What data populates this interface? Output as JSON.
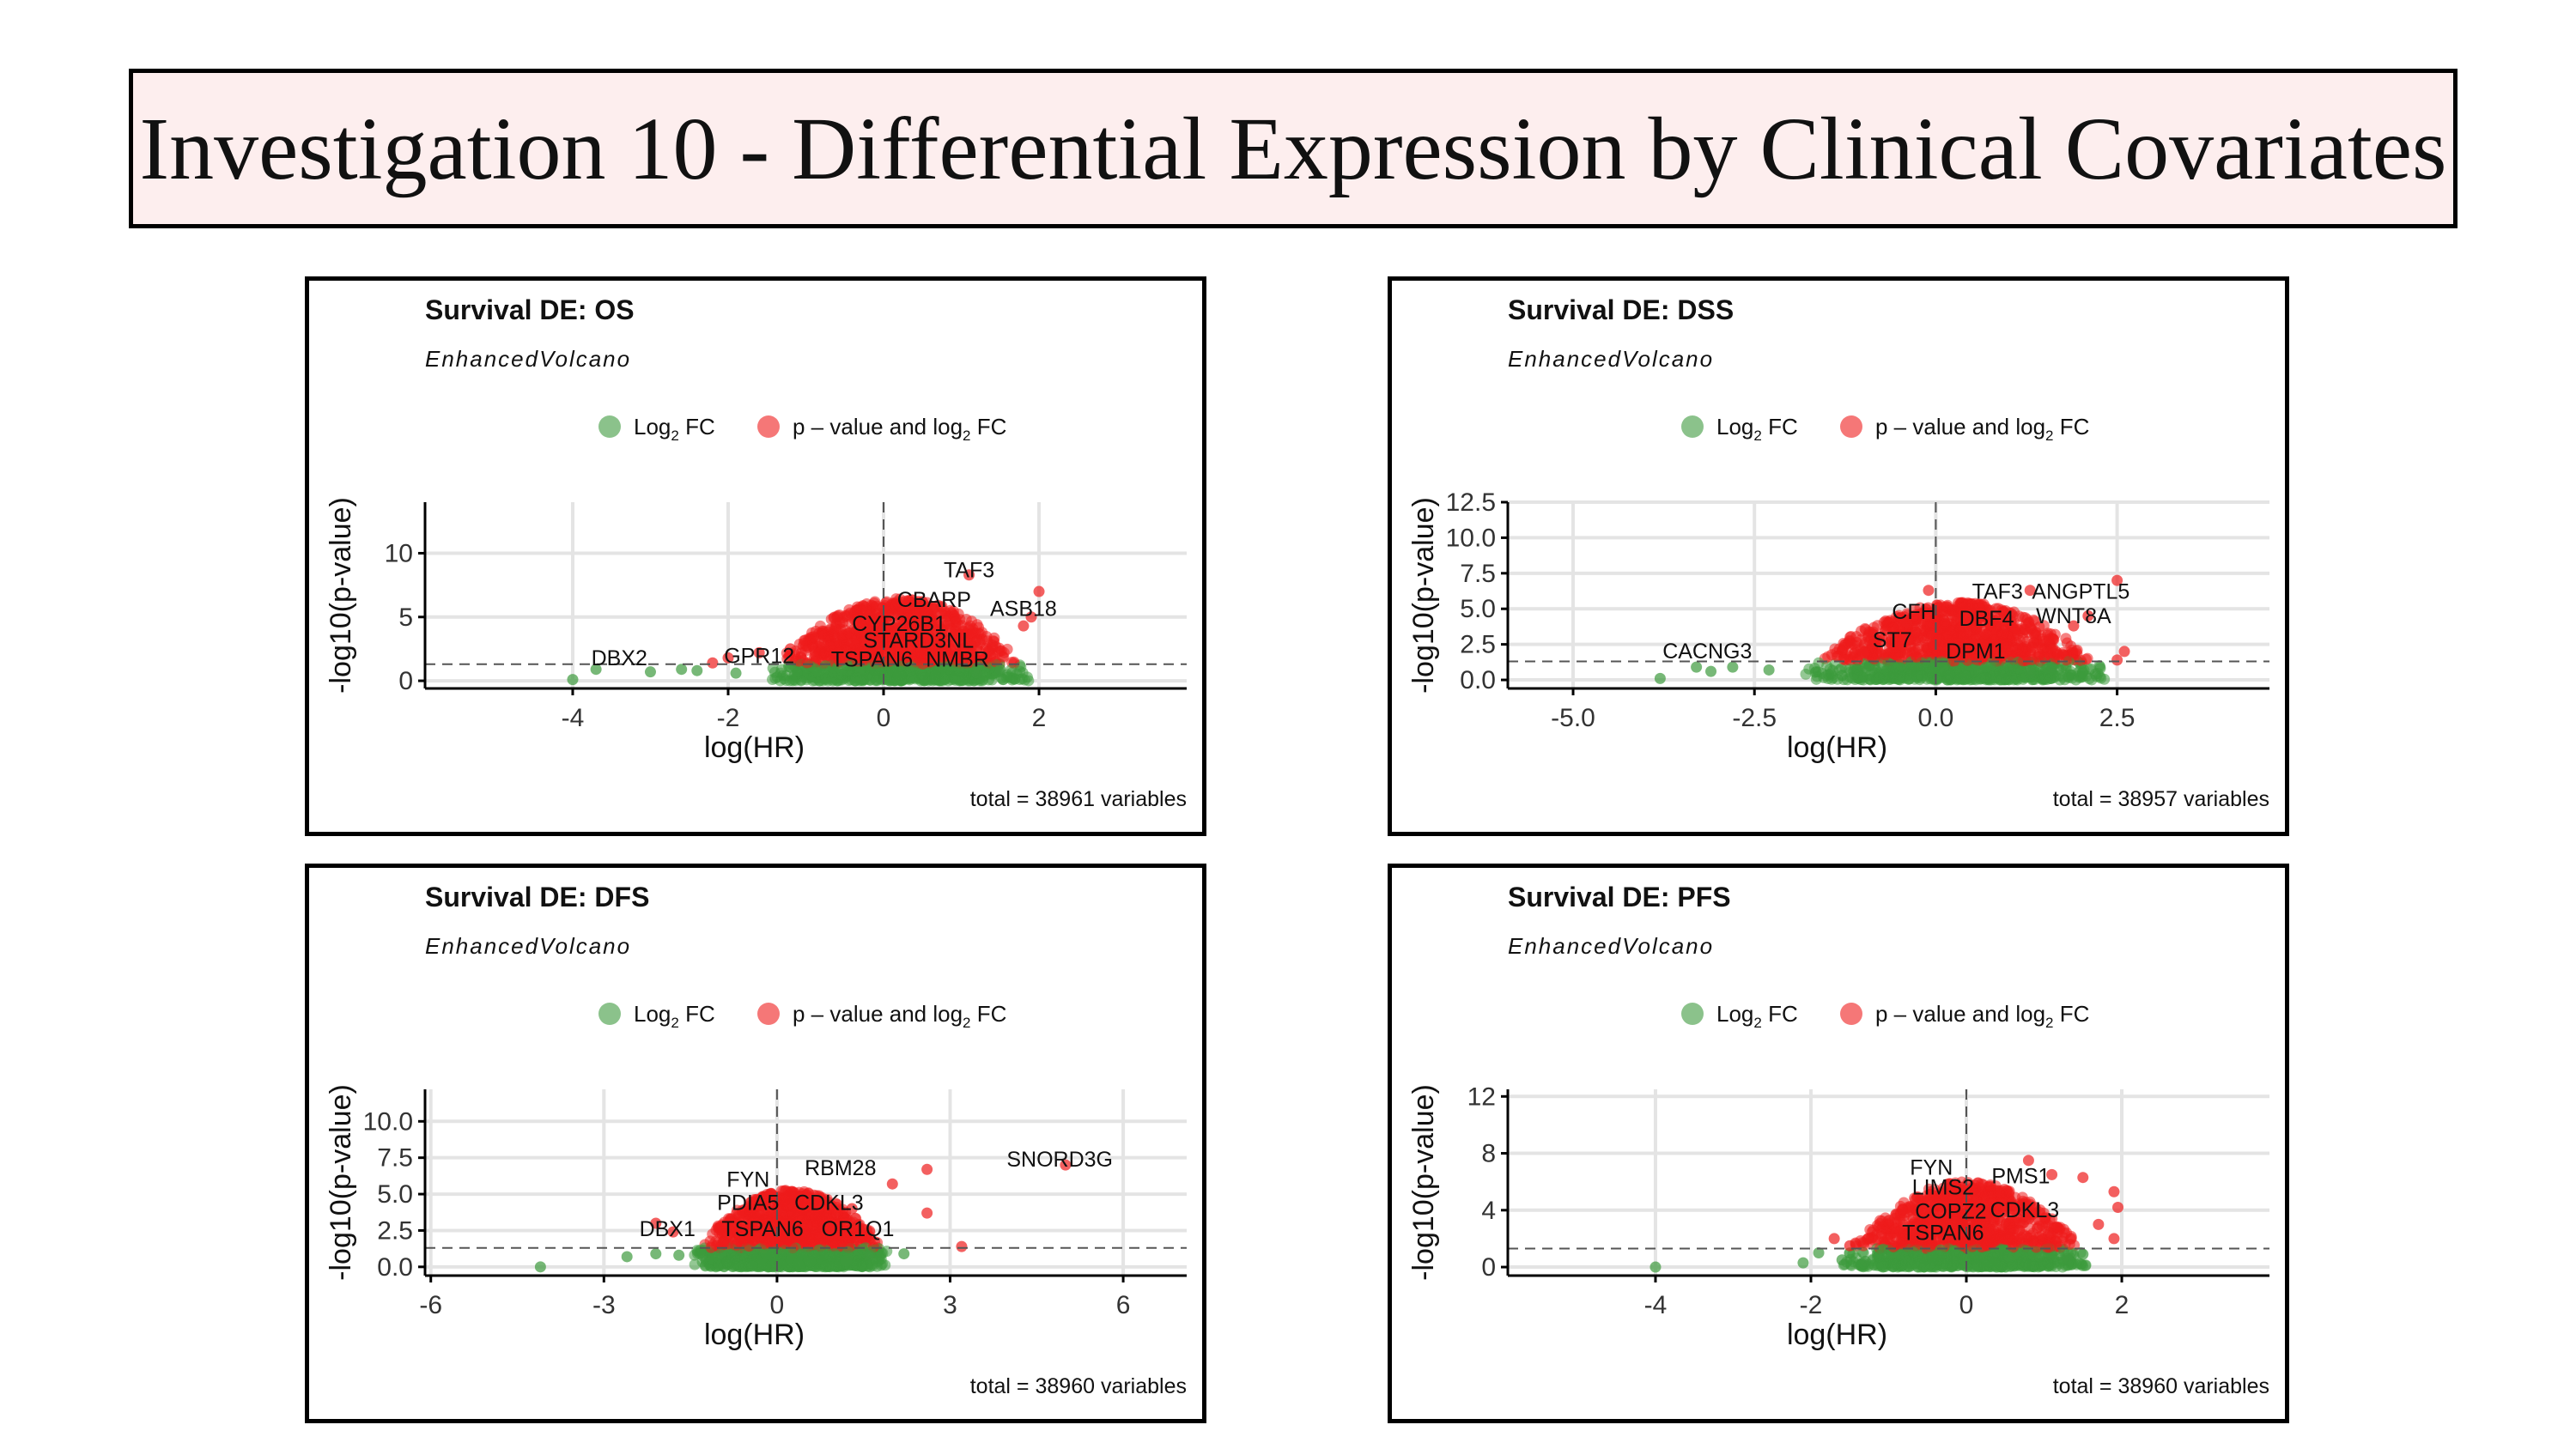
{
  "page": {
    "title": "Investigation 10 - Differential Expression by Clinical Covariates"
  },
  "legend": {
    "item1": "Log",
    "item1_sub": "2",
    "item1_suffix": " FC",
    "item2": "p – value and log",
    "item2_sub": "2",
    "item2_suffix": " FC"
  },
  "colors": {
    "green": "#3d9a3d",
    "red": "#ee1c1c",
    "threshold_line": "#555555",
    "grid": "#e4e4e4"
  },
  "chart_data": [
    {
      "type": "scatter",
      "title": "Survival DE: OS",
      "subtitle": "EnhancedVolcano",
      "xlabel": "log(HR)",
      "ylabel": "-log10(p-value)",
      "xlim": [
        -5.9,
        3.9
      ],
      "ylim": [
        -0.6,
        14
      ],
      "xticks": [
        -4,
        -2,
        0,
        2
      ],
      "xtick_labels": [
        "-4",
        "-2",
        "0",
        "2"
      ],
      "yticks": [
        0,
        5,
        10
      ],
      "ytick_labels": [
        "0",
        "5",
        "10"
      ],
      "threshold_y": 1.3,
      "caption": "total = 38961 variables",
      "cloud": {
        "xmin": -1.5,
        "xmax": 1.9,
        "ymax": 6.5
      },
      "red_points": [
        [
          2.0,
          7.0
        ],
        [
          1.1,
          8.3
        ],
        [
          0.5,
          6.2
        ],
        [
          1.8,
          4.3
        ],
        [
          -1.6,
          2.2
        ],
        [
          -1.2,
          2.5
        ],
        [
          -2.0,
          1.8
        ],
        [
          -2.2,
          1.4
        ],
        [
          1.4,
          2.8
        ],
        [
          1.9,
          5.0
        ],
        [
          -0.6,
          5.0
        ]
      ],
      "green_points": [
        [
          -4.0,
          0.1
        ],
        [
          -3.7,
          0.9
        ],
        [
          -2.6,
          0.9
        ],
        [
          -2.4,
          0.8
        ],
        [
          -3.0,
          0.7
        ],
        [
          1.5,
          0.9
        ],
        [
          -1.9,
          0.6
        ],
        [
          1.2,
          0.6
        ]
      ],
      "labels": [
        {
          "text": "TAF3",
          "x": 1.1,
          "y": 8.1
        },
        {
          "text": "CBARP",
          "x": 0.65,
          "y": 5.8
        },
        {
          "text": "ASB18",
          "x": 1.8,
          "y": 5.1
        },
        {
          "text": "CYP26B1",
          "x": 0.2,
          "y": 3.9
        },
        {
          "text": "STARD3NL",
          "x": 0.45,
          "y": 2.6
        },
        {
          "text": "DBX2",
          "x": -3.4,
          "y": 1.2
        },
        {
          "text": "GPR12",
          "x": -1.6,
          "y": 1.4
        },
        {
          "text": "TSPAN6",
          "x": -0.15,
          "y": 1.1
        },
        {
          "text": "NMBR",
          "x": 0.95,
          "y": 1.1
        }
      ]
    },
    {
      "type": "scatter",
      "title": "Survival DE: DSS",
      "subtitle": "EnhancedVolcano",
      "xlabel": "log(HR)",
      "ylabel": "-log10(p-value)",
      "xlim": [
        -5.9,
        4.6
      ],
      "ylim": [
        -0.6,
        12.5
      ],
      "xticks": [
        -5.0,
        -2.5,
        0.0,
        2.5
      ],
      "xtick_labels": [
        "-5.0",
        "-2.5",
        "0.0",
        "2.5"
      ],
      "yticks": [
        0,
        2.5,
        5,
        7.5,
        10,
        12.5
      ],
      "ytick_labels": [
        "0.0",
        "2.5",
        "5.0",
        "7.5",
        "10.0",
        "12.5"
      ],
      "threshold_y": 1.3,
      "caption": "total = 38957 variables",
      "cloud": {
        "xmin": -1.8,
        "xmax": 2.4,
        "ymax": 5.4
      },
      "red_points": [
        [
          2.5,
          7.0
        ],
        [
          1.3,
          6.3
        ],
        [
          -0.1,
          6.3
        ],
        [
          2.6,
          2.0
        ],
        [
          -1.0,
          1.9
        ],
        [
          1.9,
          3.8
        ],
        [
          2.1,
          4.5
        ],
        [
          -0.4,
          4.0
        ],
        [
          2.5,
          1.4
        ]
      ],
      "green_points": [
        [
          -3.8,
          0.1
        ],
        [
          -3.3,
          0.9
        ],
        [
          -3.1,
          0.6
        ],
        [
          -2.8,
          0.9
        ],
        [
          1.6,
          0.9
        ],
        [
          -2.3,
          0.7
        ],
        [
          1.3,
          0.5
        ]
      ],
      "labels": [
        {
          "text": "TAF3",
          "x": 0.85,
          "y": 5.7
        },
        {
          "text": "ANGPTL5",
          "x": 2.0,
          "y": 5.7
        },
        {
          "text": "CFH",
          "x": -0.3,
          "y": 4.3
        },
        {
          "text": "DBF4",
          "x": 0.7,
          "y": 3.8
        },
        {
          "text": "WNT8A",
          "x": 1.9,
          "y": 4.0
        },
        {
          "text": "ST7",
          "x": -0.6,
          "y": 2.3
        },
        {
          "text": "CACNG3",
          "x": -3.15,
          "y": 1.5
        },
        {
          "text": "DPM1",
          "x": 0.55,
          "y": 1.5
        }
      ]
    },
    {
      "type": "scatter",
      "title": "Survival DE: DFS",
      "subtitle": "EnhancedVolcano",
      "xlabel": "log(HR)",
      "ylabel": "-log10(p-value)",
      "xlim": [
        -6.1,
        7.1
      ],
      "ylim": [
        -0.6,
        12.2
      ],
      "xticks": [
        -6,
        -3,
        0,
        3,
        6
      ],
      "xtick_labels": [
        "-6",
        "-3",
        "0",
        "3",
        "6"
      ],
      "yticks": [
        0,
        2.5,
        5,
        7.5,
        10
      ],
      "ytick_labels": [
        "0.0",
        "2.5",
        "5.0",
        "7.5",
        "10.0"
      ],
      "threshold_y": 1.3,
      "caption": "total = 38960 variables",
      "cloud": {
        "xmin": -1.5,
        "xmax": 2.0,
        "ymax": 5.2
      },
      "red_points": [
        [
          5.0,
          7.0
        ],
        [
          2.6,
          6.7
        ],
        [
          2.0,
          5.7
        ],
        [
          3.2,
          1.4
        ],
        [
          2.6,
          3.7
        ],
        [
          -2.1,
          3.0
        ],
        [
          -1.8,
          2.4
        ],
        [
          1.3,
          4.0
        ]
      ],
      "green_points": [
        [
          -4.1,
          0.0
        ],
        [
          -2.6,
          0.7
        ],
        [
          -2.1,
          0.9
        ],
        [
          -1.7,
          0.8
        ],
        [
          1.6,
          0.8
        ],
        [
          2.2,
          0.9
        ],
        [
          1.2,
          0.4
        ]
      ],
      "labels": [
        {
          "text": "SNORD3G",
          "x": 4.9,
          "y": 6.9
        },
        {
          "text": "RBM28",
          "x": 1.1,
          "y": 6.3
        },
        {
          "text": "FYN",
          "x": -0.5,
          "y": 5.5
        },
        {
          "text": "PDIA5",
          "x": -0.5,
          "y": 3.9
        },
        {
          "text": "CDKL3",
          "x": 0.9,
          "y": 3.9
        },
        {
          "text": "TSPAN6",
          "x": -0.25,
          "y": 2.1
        },
        {
          "text": "OR1Q1",
          "x": 1.4,
          "y": 2.1
        },
        {
          "text": "DBX1",
          "x": -1.9,
          "y": 2.1
        }
      ]
    },
    {
      "type": "scatter",
      "title": "Survival DE: PFS",
      "subtitle": "EnhancedVolcano",
      "xlabel": "log(HR)",
      "ylabel": "-log10(p-value)",
      "xlim": [
        -5.9,
        3.9
      ],
      "ylim": [
        -0.6,
        12.5
      ],
      "xticks": [
        -4,
        -2,
        0,
        2
      ],
      "xtick_labels": [
        "-4",
        "-2",
        "0",
        "2"
      ],
      "yticks": [
        0,
        4,
        8,
        12
      ],
      "ytick_labels": [
        "0",
        "4",
        "8",
        "12"
      ],
      "threshold_y": 1.3,
      "caption": "total = 38960 variables",
      "cloud": {
        "xmin": -1.6,
        "xmax": 1.6,
        "ymax": 6.0
      },
      "red_points": [
        [
          0.8,
          7.5
        ],
        [
          1.1,
          6.5
        ],
        [
          1.5,
          6.3
        ],
        [
          1.9,
          5.3
        ],
        [
          1.9,
          2.0
        ],
        [
          -1.7,
          2.0
        ],
        [
          -1.5,
          1.5
        ],
        [
          1.7,
          3.0
        ],
        [
          1.95,
          4.2
        ]
      ],
      "green_points": [
        [
          -4.0,
          0.0
        ],
        [
          -1.9,
          1.0
        ],
        [
          -1.6,
          0.5
        ],
        [
          -1.3,
          0.4
        ],
        [
          1.3,
          0.6
        ],
        [
          1.5,
          0.9
        ],
        [
          -2.1,
          0.3
        ]
      ],
      "labels": [
        {
          "text": "FYN",
          "x": -0.45,
          "y": 6.5
        },
        {
          "text": "LIMS2",
          "x": -0.3,
          "y": 5.1
        },
        {
          "text": "PMS1",
          "x": 0.7,
          "y": 5.9
        },
        {
          "text": "COPZ2",
          "x": -0.2,
          "y": 3.4
        },
        {
          "text": "CDKL3",
          "x": 0.75,
          "y": 3.5
        },
        {
          "text": "TSPAN6",
          "x": -0.3,
          "y": 1.9
        }
      ]
    }
  ]
}
